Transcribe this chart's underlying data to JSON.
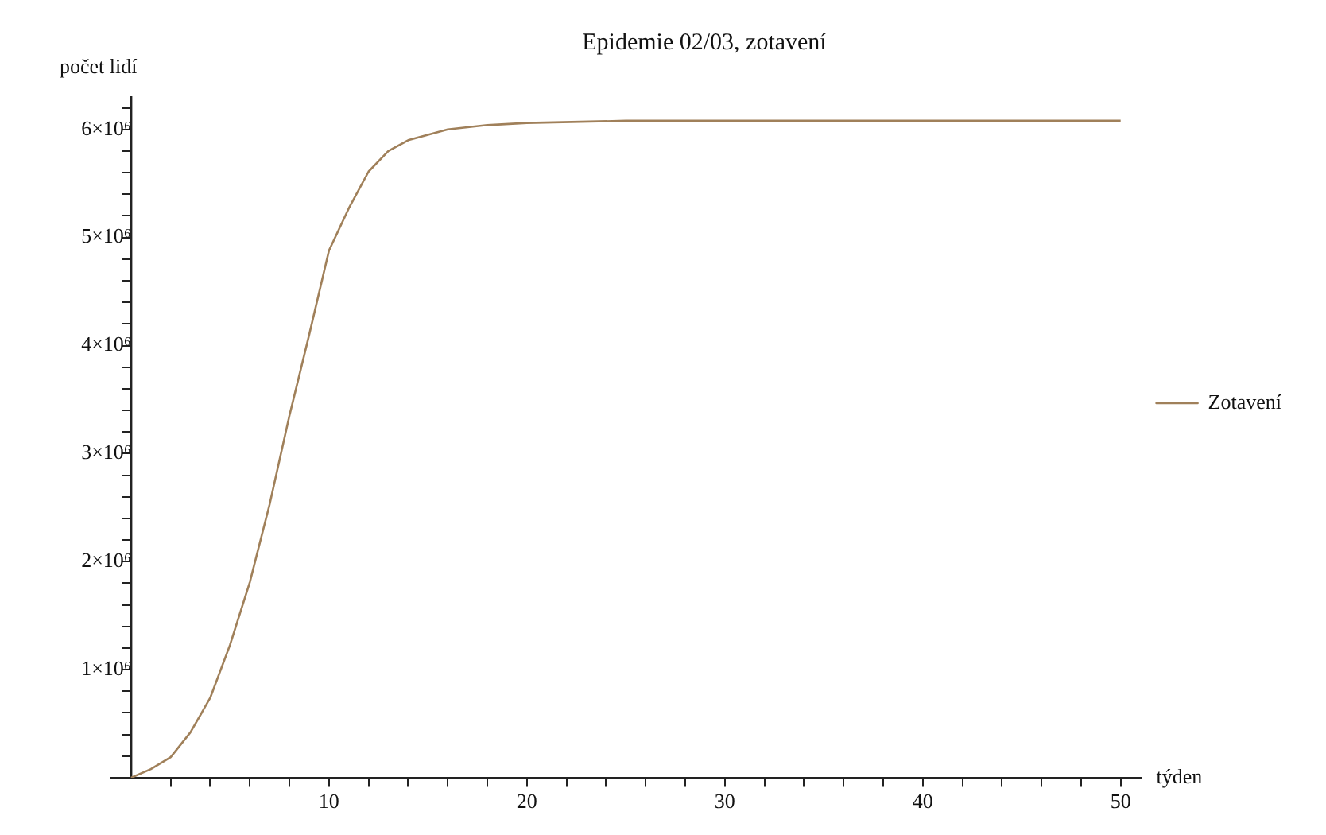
{
  "chart_data": {
    "type": "line",
    "title": "Epidemie 02/03, zotavení",
    "xlabel": "týden",
    "ylabel": "počet lidí",
    "x": [
      0,
      1,
      2,
      3,
      4,
      5,
      6,
      7,
      8,
      9,
      10,
      11,
      12,
      13,
      14,
      16,
      18,
      20,
      25,
      30,
      40,
      50
    ],
    "series": [
      {
        "name": "Zotavení",
        "color": "#a0805a",
        "values": [
          0,
          80000,
          190000,
          420000,
          740000,
          1230000,
          1810000,
          2530000,
          3350000,
          4100000,
          4880000,
          5270000,
          5610000,
          5800000,
          5900000,
          6000000,
          6040000,
          6060000,
          6080000,
          6080000,
          6080000,
          6080000
        ]
      }
    ],
    "xlim": [
      -1,
      51
    ],
    "ylim": [
      0,
      6300000
    ],
    "xticks": [
      10,
      20,
      30,
      40,
      50,
      {
        "value": 2,
        "label": null
      },
      {
        "value": 4,
        "label": null
      },
      {
        "value": 6,
        "label": null
      },
      {
        "value": 8,
        "label": null
      },
      {
        "value": 12,
        "label": null
      },
      {
        "value": 14,
        "label": null
      },
      {
        "value": 16,
        "label": null
      },
      {
        "value": 18,
        "label": null
      },
      {
        "value": 22,
        "label": null
      },
      {
        "value": 24,
        "label": null
      },
      {
        "value": 26,
        "label": null
      },
      {
        "value": 28,
        "label": null
      },
      {
        "value": 32,
        "label": null
      },
      {
        "value": 34,
        "label": null
      },
      {
        "value": 36,
        "label": null
      },
      {
        "value": 38,
        "label": null
      },
      {
        "value": 42,
        "label": null
      },
      {
        "value": 44,
        "label": null
      },
      {
        "value": 46,
        "label": null
      },
      {
        "value": 48,
        "label": null
      }
    ],
    "yticks": [
      {
        "value": 1000000,
        "label": "1×10⁶"
      },
      {
        "value": 2000000,
        "label": "2×10⁶"
      },
      {
        "value": 3000000,
        "label": "3×10⁶"
      },
      {
        "value": 4000000,
        "label": "4×10⁶"
      },
      {
        "value": 5000000,
        "label": "5×10⁶"
      },
      {
        "value": 6000000,
        "label": "6×10⁶"
      },
      {
        "value": 200000,
        "label": null
      },
      {
        "value": 400000,
        "label": null
      },
      {
        "value": 600000,
        "label": null
      },
      {
        "value": 800000,
        "label": null
      },
      {
        "value": 1200000,
        "label": null
      },
      {
        "value": 1400000,
        "label": null
      },
      {
        "value": 1600000,
        "label": null
      },
      {
        "value": 1800000,
        "label": null
      },
      {
        "value": 2200000,
        "label": null
      },
      {
        "value": 2400000,
        "label": null
      },
      {
        "value": 2600000,
        "label": null
      },
      {
        "value": 2800000,
        "label": null
      },
      {
        "value": 3200000,
        "label": null
      },
      {
        "value": 3400000,
        "label": null
      },
      {
        "value": 3600000,
        "label": null
      },
      {
        "value": 3800000,
        "label": null
      },
      {
        "value": 4200000,
        "label": null
      },
      {
        "value": 4400000,
        "label": null
      },
      {
        "value": 4600000,
        "label": null
      },
      {
        "value": 4800000,
        "label": null
      },
      {
        "value": 5200000,
        "label": null
      },
      {
        "value": 5400000,
        "label": null
      },
      {
        "value": 5600000,
        "label": null
      },
      {
        "value": 5800000,
        "label": null
      },
      {
        "value": 6200000,
        "label": null
      }
    ],
    "grid": false,
    "legend": "right",
    "marker": "none",
    "line_style": "solid"
  }
}
